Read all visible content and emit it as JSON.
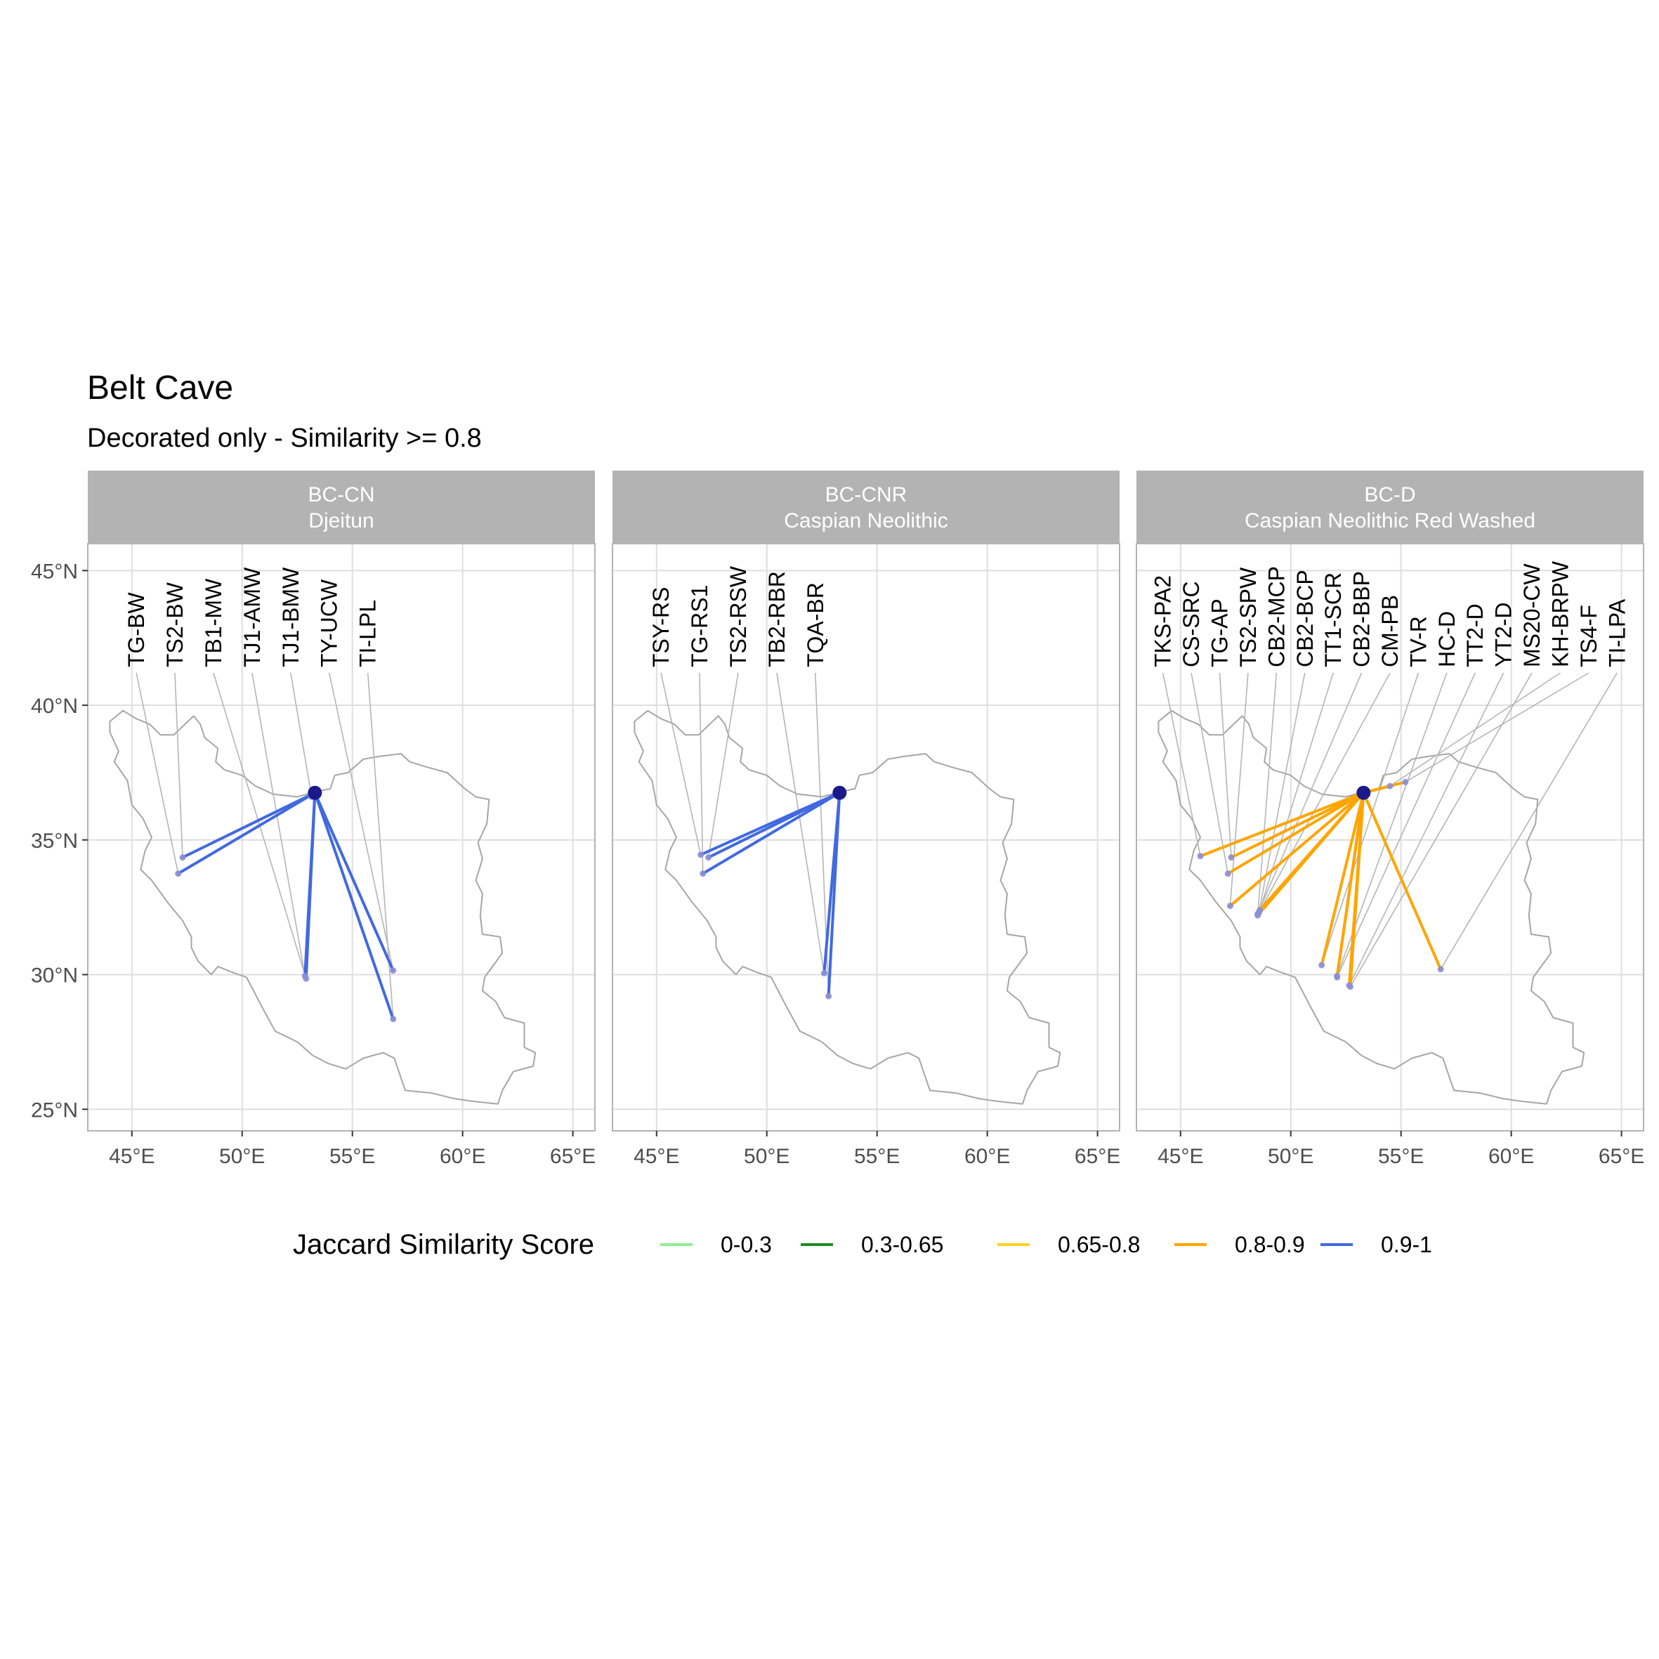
{
  "title": "Belt Cave",
  "subtitle": "Decorated only - Similarity >= 0.8",
  "colors": {
    "strip_bg": "#b3b3b3",
    "strip_text": "#ffffff",
    "grid": "#dedede",
    "panel_border": "#b3b3b3",
    "country_outline": "#a6a6a6",
    "leader_line": "#b5b5b5",
    "origin_point": "#1a1a8c",
    "site_point": "#8a8fd6"
  },
  "legend": {
    "title": "Jaccard Similarity Score",
    "items": [
      {
        "label": "0-0.3",
        "color": "#90ee90"
      },
      {
        "label": "0.3-0.65",
        "color": "#228b22"
      },
      {
        "label": "0.65-0.8",
        "color": "#ffd21f"
      },
      {
        "label": "0.8-0.9",
        "color": "#ffa500"
      },
      {
        "label": "0.9-1",
        "color": "#4169e1"
      }
    ]
  },
  "chart_data": {
    "type": "map",
    "x_axis": {
      "range": [
        43,
        66
      ],
      "ticks": [
        45,
        50,
        55,
        60,
        65
      ],
      "tick_labels": [
        "45°E",
        "50°E",
        "55°E",
        "60°E",
        "65°E"
      ]
    },
    "y_axis": {
      "range": [
        24.2,
        46.0
      ],
      "ticks": [
        25,
        30,
        35,
        40,
        45
      ],
      "tick_labels": [
        "25°N",
        "30°N",
        "35°N",
        "40°N",
        "45°N"
      ]
    },
    "origin": {
      "lon": 53.3,
      "lat": 36.75
    },
    "panels": [
      {
        "strip_line1": "BC-CN",
        "strip_line2": "Djeitun",
        "links": [
          {
            "site": "TG-BW",
            "lon": 47.1,
            "lat": 33.75,
            "score_class": "0.9-1"
          },
          {
            "site": "TS2-BW",
            "lon": 47.3,
            "lat": 34.35,
            "score_class": "0.9-1"
          },
          {
            "site": "TB1-MW",
            "lon": 52.9,
            "lat": 29.85,
            "score_class": "0.9-1"
          },
          {
            "site": "TJ1-AMW",
            "lon": 52.85,
            "lat": 29.95,
            "score_class": "0.9-1"
          },
          {
            "site": "TJ1-BMW",
            "lon": 53.15,
            "lat": 36.6,
            "score_class": "0.9-1"
          },
          {
            "site": "TY-UCW",
            "lon": 56.85,
            "lat": 30.15,
            "score_class": "0.9-1"
          },
          {
            "site": "TI-LPL",
            "lon": 56.85,
            "lat": 28.35,
            "score_class": "0.9-1"
          }
        ]
      },
      {
        "strip_line1": "BC-CNR",
        "strip_line2": "Caspian Neolithic",
        "links": [
          {
            "site": "TSY-RS",
            "lon": 47.0,
            "lat": 34.45,
            "score_class": "0.9-1"
          },
          {
            "site": "TG-RS1",
            "lon": 47.1,
            "lat": 33.75,
            "score_class": "0.9-1"
          },
          {
            "site": "TS2-RSW",
            "lon": 47.35,
            "lat": 34.35,
            "score_class": "0.9-1"
          },
          {
            "site": "TB2-RBR",
            "lon": 52.6,
            "lat": 30.05,
            "score_class": "0.9-1"
          },
          {
            "site": "TQA-BR",
            "lon": 52.8,
            "lat": 29.2,
            "score_class": "0.9-1"
          }
        ]
      },
      {
        "strip_line1": "BC-D",
        "strip_line2": "Caspian Neolithic Red Washed",
        "links": [
          {
            "site": "TKS-PA2",
            "lon": 45.9,
            "lat": 34.4,
            "score_class": "0.8-0.9"
          },
          {
            "site": "CS-SRC",
            "lon": 47.15,
            "lat": 33.75,
            "score_class": "0.8-0.9"
          },
          {
            "site": "TG-AP",
            "lon": 47.3,
            "lat": 34.35,
            "score_class": "0.8-0.9"
          },
          {
            "site": "TS2-SPW",
            "lon": 47.25,
            "lat": 32.55,
            "score_class": "0.8-0.9"
          },
          {
            "site": "CB2-MCP",
            "lon": 48.5,
            "lat": 32.2,
            "score_class": "0.8-0.9"
          },
          {
            "site": "CB2-BCP",
            "lon": 48.55,
            "lat": 32.3,
            "score_class": "0.8-0.9"
          },
          {
            "site": "TT1-SCR",
            "lon": 48.6,
            "lat": 32.4,
            "score_class": "0.8-0.9"
          },
          {
            "site": "CB2-BBP",
            "lon": 48.5,
            "lat": 32.25,
            "score_class": "0.8-0.9"
          },
          {
            "site": "CM-PB",
            "lon": 48.55,
            "lat": 32.3,
            "score_class": "0.8-0.9"
          },
          {
            "site": "TV-R",
            "lon": 51.4,
            "lat": 30.35,
            "score_class": "0.8-0.9"
          },
          {
            "site": "HC-D",
            "lon": 52.1,
            "lat": 29.95,
            "score_class": "0.8-0.9"
          },
          {
            "site": "TT2-D",
            "lon": 52.1,
            "lat": 29.9,
            "score_class": "0.8-0.9"
          },
          {
            "site": "YT2-D",
            "lon": 52.65,
            "lat": 29.6,
            "score_class": "0.8-0.9"
          },
          {
            "site": "MS20-CW",
            "lon": 52.7,
            "lat": 29.55,
            "score_class": "0.8-0.9"
          },
          {
            "site": "KH-BRPW",
            "lon": 54.5,
            "lat": 37.0,
            "score_class": "0.8-0.9"
          },
          {
            "site": "TS4-F",
            "lon": 55.2,
            "lat": 37.15,
            "score_class": "0.8-0.9"
          },
          {
            "site": "TI-LPA",
            "lon": 56.8,
            "lat": 30.2,
            "score_class": "0.8-0.9"
          }
        ]
      }
    ]
  }
}
